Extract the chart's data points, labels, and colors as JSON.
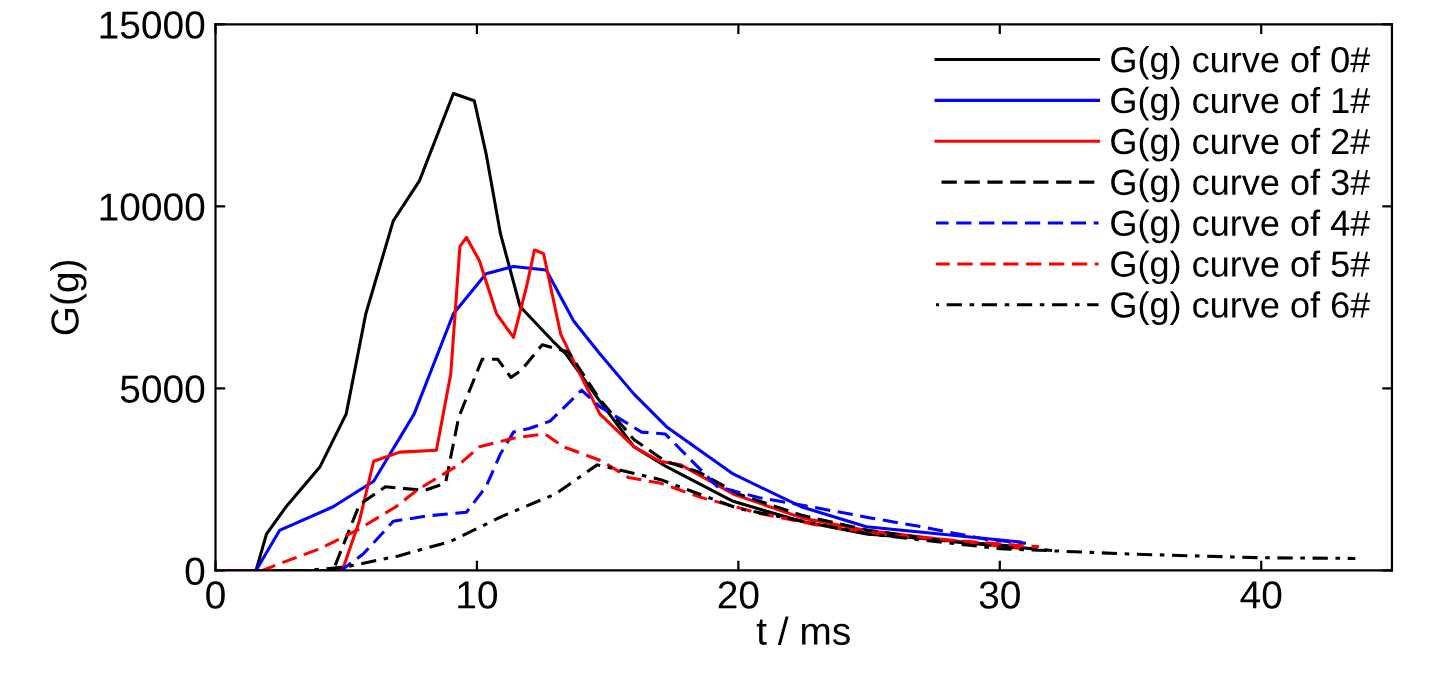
{
  "chart_data": {
    "type": "line",
    "xlabel": "t / ms",
    "ylabel": "G(g)",
    "xlim": [
      0,
      45
    ],
    "ylim": [
      0,
      15000
    ],
    "xticks": [
      0,
      10,
      20,
      30,
      40
    ],
    "yticks": [
      0,
      5000,
      10000,
      15000
    ],
    "grid": false,
    "legend": "top right",
    "marker": "none",
    "series": [
      {
        "name": "G(g) curve of 0#",
        "color": "#000000",
        "line_style": "solid",
        "x": [
          0,
          1.55,
          1.95,
          2.7,
          4.0,
          5.0,
          5.75,
          6.8,
          7.8,
          9.1,
          9.9,
          10.35,
          10.9,
          11.65,
          12.9,
          13.4,
          14.7,
          16.0,
          17.25,
          19.8,
          22.4,
          24.9,
          30.8
        ],
        "values": [
          0,
          0,
          1000,
          1750,
          2850,
          4300,
          7050,
          9600,
          10700,
          13100,
          12900,
          11450,
          9250,
          7250,
          6300,
          5950,
          4650,
          3400,
          2850,
          1900,
          1350,
          1000,
          650
        ]
      },
      {
        "name": "G(g) curve of 1#",
        "color": "#0000ff",
        "line_style": "solid",
        "x": [
          0,
          1.55,
          2.45,
          4.5,
          6.05,
          7.6,
          9.1,
          10.35,
          11.4,
          12.65,
          13.7,
          14.7,
          16.0,
          17.25,
          19.8,
          22.4,
          24.9,
          30.8
        ],
        "values": [
          0,
          0,
          1100,
          1750,
          2450,
          4300,
          7050,
          8150,
          8350,
          8250,
          6850,
          5950,
          4850,
          3950,
          2650,
          1750,
          1200,
          780
        ]
      },
      {
        "name": "G(g) curve of 2#",
        "color": "#ff0000",
        "line_style": "solid",
        "x": [
          0,
          4.3,
          4.9,
          5.5,
          6.05,
          7.05,
          8.45,
          9.0,
          9.35,
          9.6,
          10.1,
          10.75,
          11.4,
          11.9,
          12.2,
          12.55,
          13.2,
          13.7,
          14.7,
          16.0,
          17.0,
          17.8,
          19.8,
          22.4,
          24.9,
          30.8
        ],
        "values": [
          0,
          0,
          100,
          1350,
          3000,
          3250,
          3300,
          5400,
          8900,
          9150,
          8500,
          7050,
          6400,
          7800,
          8800,
          8700,
          6500,
          5750,
          4300,
          3400,
          3000,
          2900,
          2100,
          1450,
          1100,
          600
        ]
      },
      {
        "name": "G(g) curve of 3#",
        "color": "#000000",
        "line_style": "dashed",
        "x": [
          4.5,
          5.5,
          6.5,
          8.0,
          8.8,
          9.3,
          10.2,
          10.8,
          11.3,
          11.7,
          12.5,
          13.5,
          14.7,
          16.0,
          17.2,
          18.5,
          20.0,
          22.5,
          25.0,
          28.0,
          32.0
        ],
        "values": [
          0,
          1800,
          2300,
          2200,
          2400,
          4200,
          5800,
          5800,
          5300,
          5500,
          6200,
          6000,
          4700,
          3600,
          3000,
          2700,
          2100,
          1500,
          1100,
          800,
          550
        ]
      },
      {
        "name": "G(g) curve of 4#",
        "color": "#0000ff",
        "line_style": "dashed",
        "x": [
          4.8,
          5.65,
          6.8,
          8.1,
          9.6,
          10.35,
          10.9,
          11.4,
          12.0,
          12.8,
          14.0,
          14.7,
          16.3,
          17.2,
          19.2,
          20.8,
          22.4,
          25.0,
          27.0,
          29.5,
          31.0
        ],
        "values": [
          0,
          450,
          1350,
          1500,
          1600,
          2300,
          3200,
          3800,
          3900,
          4100,
          4950,
          4500,
          3800,
          3750,
          2300,
          2000,
          1800,
          1450,
          1200,
          850,
          750
        ]
      },
      {
        "name": "G(g) curve of 5#",
        "color": "#ff0000",
        "line_style": "dashed",
        "x": [
          1.8,
          2.5,
          4.0,
          5.4,
          6.9,
          7.7,
          9.3,
          10.1,
          11.5,
          12.6,
          13.3,
          14.8,
          15.8,
          17.0,
          18.6,
          20.9,
          23.0,
          26.0,
          31.5
        ],
        "values": [
          0,
          200,
          600,
          1100,
          1750,
          2200,
          2900,
          3400,
          3650,
          3750,
          3400,
          3000,
          2550,
          2400,
          2000,
          1550,
          1250,
          950,
          650
        ]
      },
      {
        "name": "G(g) curve of 6#",
        "color": "#000000",
        "line_style": "dashdot",
        "x": [
          2.5,
          3.5,
          5,
          7,
          9,
          11,
          13,
          14.6,
          17,
          20,
          25,
          30,
          35,
          40,
          43.6
        ],
        "values": [
          0,
          0,
          100,
          400,
          800,
          1500,
          2100,
          2900,
          2500,
          1700,
          1000,
          600,
          450,
          350,
          330
        ]
      }
    ]
  }
}
